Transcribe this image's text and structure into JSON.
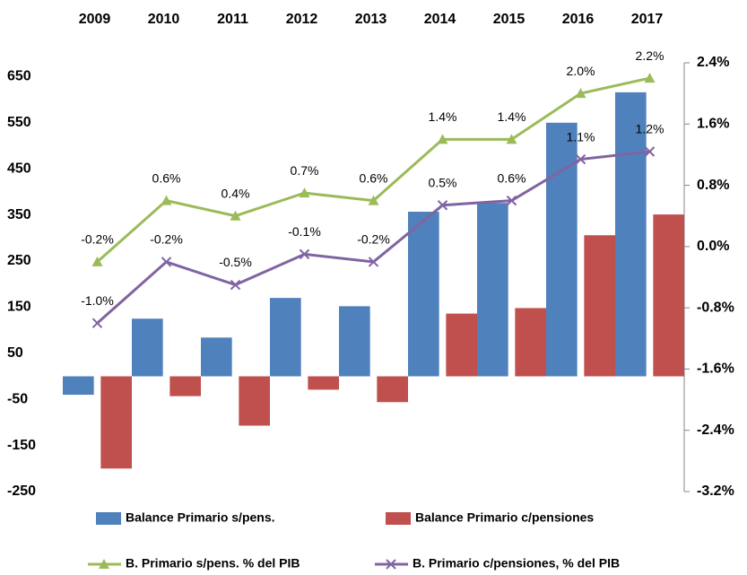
{
  "chart_data": {
    "type": "combo",
    "categories": [
      "2009",
      "2010",
      "2011",
      "2012",
      "2013",
      "2014",
      "2015",
      "2016",
      "2017"
    ],
    "series": [
      {
        "name": "Balance Primario s/pens.",
        "type": "bar",
        "color": "#4f81bd",
        "values": [
          -40,
          125,
          84,
          170,
          152,
          357,
          376,
          550,
          616
        ]
      },
      {
        "name": "Balance Primario c/pensiones",
        "type": "bar",
        "color": "#c0504d",
        "values": [
          -200,
          -43,
          -107,
          -29,
          -56,
          136,
          148,
          306,
          351
        ]
      },
      {
        "name": "B. Primario s/pens. % del PIB",
        "type": "line",
        "marker": "triangle",
        "axis": "y2",
        "color": "#9bbb59",
        "values": [
          -0.2,
          0.6,
          0.4,
          0.7,
          0.6,
          1.4,
          1.4,
          2.0,
          2.2
        ],
        "value_labels": [
          "-0.2%",
          "0.6%",
          "0.4%",
          "0.7%",
          "0.6%",
          "1.4%",
          "1.4%",
          "2.0%",
          "2.2%"
        ]
      },
      {
        "name": "B. Primario c/pensiones, % del PIB",
        "type": "line",
        "marker": "x",
        "axis": "y2",
        "color": "#8064a2",
        "values": [
          -1.0,
          -0.2,
          -0.5,
          -0.1,
          -0.2,
          0.54,
          0.6,
          1.14,
          1.24
        ],
        "value_labels": [
          "-1.0%",
          "-0.2%",
          "-0.5%",
          "-0.1%",
          "-0.2%",
          "0.5%",
          "0.6%",
          "1.1%",
          "1.2%"
        ]
      }
    ],
    "ylim": [
      -250,
      680
    ],
    "yticks": [
      -250,
      -150,
      -50,
      50,
      150,
      250,
      350,
      450,
      550,
      650
    ],
    "y2lim": [
      -3.2,
      2.4
    ],
    "y2ticks": [
      {
        "value": -3.2,
        "label": "-3.2%"
      },
      {
        "value": -2.4,
        "label": "-2.4%"
      },
      {
        "value": -1.6,
        "label": "-1.6%"
      },
      {
        "value": -0.8,
        "label": "-0.8%"
      },
      {
        "value": 0.0,
        "label": "0.0%"
      },
      {
        "value": 0.8,
        "label": "0.8%"
      },
      {
        "value": 1.6,
        "label": "1.6%"
      },
      {
        "value": 2.4,
        "label": "2.4%"
      }
    ],
    "legend": "bottom"
  }
}
